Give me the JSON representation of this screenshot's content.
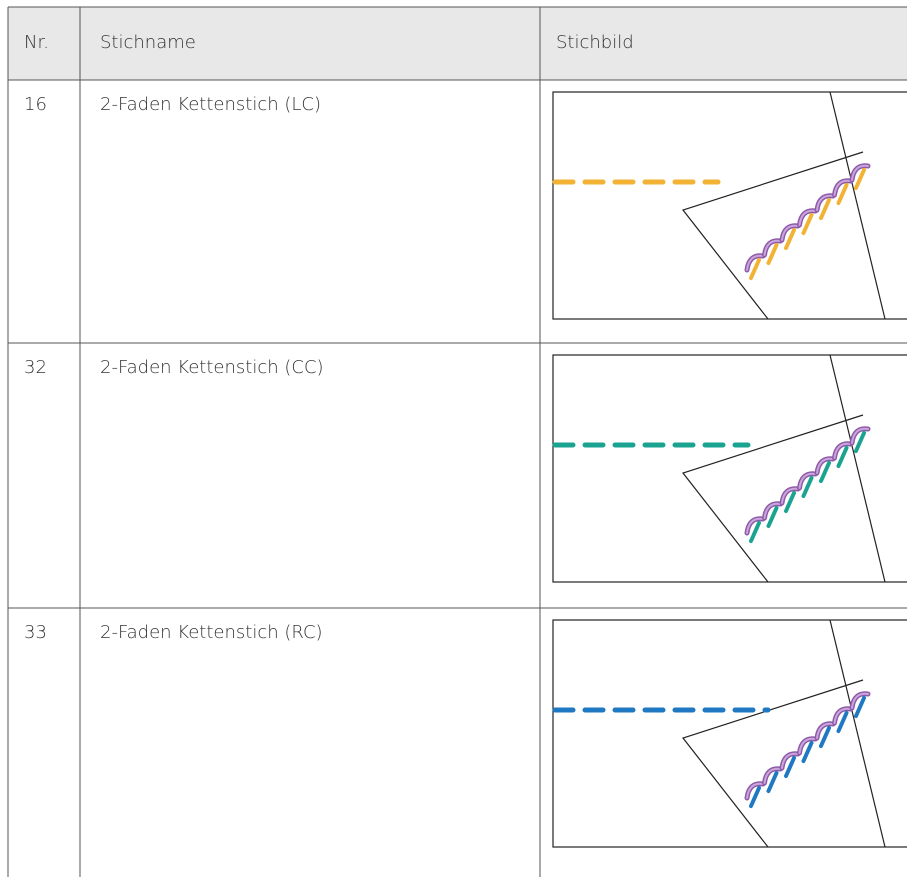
{
  "table": {
    "header": [
      "Nr.",
      "Stichname",
      "Stichbild"
    ],
    "rows": [
      [
        "16",
        "2-Faden Kettenstich (LC)"
      ],
      [
        "32",
        "2-Faden Kettenstich (CC)"
      ],
      [
        "33",
        "2-Faden Kettenstich (RC)"
      ]
    ]
  }
}
